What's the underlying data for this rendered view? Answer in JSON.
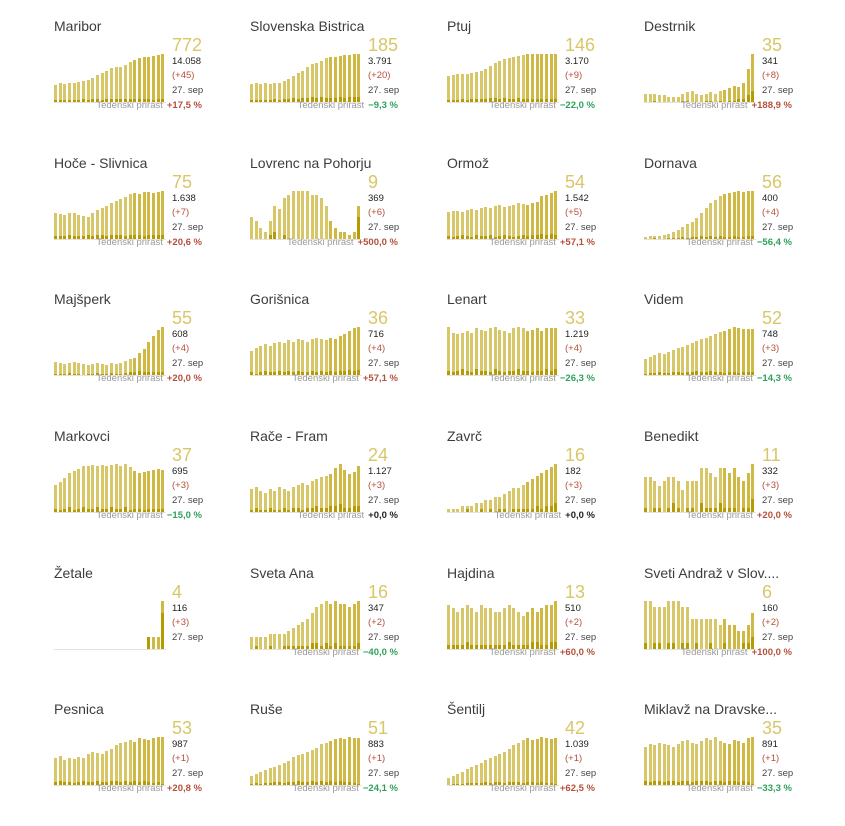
{
  "footer_label": "Tedenski prirast",
  "colors": {
    "bar": "#d8c769",
    "bar_recent": "#d0b845",
    "new_cases": "#b59a00",
    "positive": "#b4503c",
    "negative": "#2ea15a"
  },
  "chart_data": [
    {
      "type": "bar",
      "title": "Maribor",
      "active": "772",
      "total": "14.058",
      "new": "(+45)",
      "date": "27. sep",
      "growth": "+17,5 %",
      "sign": "pos",
      "values": [
        280,
        300,
        290,
        300,
        310,
        320,
        330,
        360,
        380,
        430,
        470,
        500,
        540,
        560,
        570,
        600,
        640,
        680,
        700,
        720,
        720,
        740,
        755,
        772
      ],
      "new_values": [
        30,
        32,
        28,
        35,
        30,
        40,
        42,
        38,
        45,
        50,
        40,
        45,
        55,
        50,
        48,
        52,
        46,
        50,
        44,
        48,
        52,
        40,
        45,
        45
      ]
    },
    {
      "type": "bar",
      "title": "Slovenska Bistrica",
      "active": "185",
      "total": "3.791",
      "new": "(+20)",
      "date": "27. sep",
      "growth": "−9,3 %",
      "sign": "neg",
      "values": [
        70,
        72,
        68,
        74,
        70,
        72,
        75,
        80,
        90,
        100,
        110,
        120,
        135,
        145,
        150,
        160,
        168,
        172,
        175,
        178,
        180,
        182,
        184,
        185
      ],
      "new_values": [
        8,
        7,
        8,
        9,
        7,
        10,
        9,
        11,
        12,
        14,
        13,
        15,
        16,
        18,
        14,
        19,
        17,
        16,
        15,
        18,
        17,
        19,
        18,
        20
      ]
    },
    {
      "type": "bar",
      "title": "Ptuj",
      "active": "146",
      "total": "3.170",
      "new": "(+9)",
      "date": "27. sep",
      "growth": "−22,0 %",
      "sign": "neg",
      "values": [
        80,
        82,
        84,
        85,
        86,
        88,
        90,
        95,
        100,
        110,
        120,
        125,
        130,
        135,
        138,
        140,
        144,
        146,
        145,
        146,
        146,
        145,
        146,
        146
      ],
      "new_values": [
        6,
        7,
        6,
        8,
        7,
        8,
        9,
        9,
        10,
        12,
        11,
        10,
        12,
        9,
        10,
        11,
        8,
        10,
        9,
        8,
        10,
        9,
        9,
        9
      ]
    },
    {
      "type": "bar",
      "title": "Destrnik",
      "active": "35",
      "total": "341",
      "new": "(+8)",
      "date": "27. sep",
      "growth": "+188,9 %",
      "sign": "pos",
      "values": [
        6,
        6,
        6,
        5,
        5,
        4,
        4,
        4,
        6,
        7,
        8,
        6,
        5,
        6,
        7,
        6,
        8,
        9,
        10,
        12,
        11,
        14,
        24,
        35
      ],
      "new_values": [
        0,
        0,
        1,
        0,
        0,
        0,
        0,
        0,
        1,
        1,
        0,
        0,
        0,
        1,
        1,
        0,
        1,
        0,
        1,
        1,
        2,
        2,
        5,
        8
      ]
    },
    {
      "type": "bar",
      "title": "Hoče - Slivnica",
      "active": "75",
      "total": "1.638",
      "new": "(+7)",
      "date": "27. sep",
      "growth": "+20,6 %",
      "sign": "pos",
      "values": [
        40,
        39,
        38,
        40,
        41,
        38,
        36,
        35,
        40,
        45,
        48,
        52,
        56,
        60,
        62,
        66,
        70,
        72,
        70,
        73,
        74,
        72,
        74,
        75
      ],
      "new_values": [
        4,
        5,
        4,
        6,
        5,
        4,
        5,
        6,
        5,
        6,
        7,
        5,
        6,
        7,
        6,
        5,
        7,
        6,
        6,
        5,
        7,
        6,
        6,
        7
      ]
    },
    {
      "type": "bar",
      "title": "Lovrenc na Pohorju",
      "active": "9",
      "total": "369",
      "new": "(+6)",
      "date": "27. sep",
      "growth": "+500,0 %",
      "sign": "pos",
      "values": [
        6,
        5,
        3,
        2,
        5,
        9,
        8,
        11,
        12,
        13,
        13,
        13,
        13,
        12,
        12,
        11,
        9,
        5,
        3,
        2,
        2,
        1,
        2,
        9
      ],
      "new_values": [
        0,
        0,
        0,
        0,
        1,
        2,
        0,
        1,
        0,
        0,
        0,
        0,
        0,
        0,
        0,
        0,
        0,
        0,
        0,
        0,
        0,
        0,
        0,
        6
      ]
    },
    {
      "type": "bar",
      "title": "Ormož",
      "active": "54",
      "total": "1.542",
      "new": "(+5)",
      "date": "27. sep",
      "growth": "+57,1 %",
      "sign": "pos",
      "values": [
        30,
        31,
        32,
        30,
        33,
        34,
        33,
        35,
        36,
        35,
        37,
        38,
        36,
        37,
        38,
        40,
        39,
        38,
        40,
        42,
        48,
        50,
        52,
        54
      ],
      "new_values": [
        3,
        2,
        3,
        4,
        3,
        2,
        4,
        3,
        3,
        4,
        2,
        3,
        4,
        3,
        2,
        3,
        4,
        3,
        4,
        5,
        6,
        5,
        6,
        5
      ]
    },
    {
      "type": "bar",
      "title": "Dornava",
      "active": "56",
      "total": "400",
      "new": "(+4)",
      "date": "27. sep",
      "growth": "−56,4 %",
      "sign": "neg",
      "values": [
        2,
        3,
        4,
        4,
        5,
        6,
        8,
        10,
        14,
        18,
        20,
        24,
        30,
        36,
        42,
        46,
        50,
        52,
        54,
        55,
        56,
        55,
        56,
        56
      ],
      "new_values": [
        0,
        0,
        1,
        0,
        0,
        1,
        1,
        1,
        2,
        1,
        2,
        2,
        3,
        2,
        3,
        2,
        3,
        2,
        2,
        3,
        2,
        2,
        3,
        4
      ]
    },
    {
      "type": "bar",
      "title": "Majšperk",
      "active": "55",
      "total": "608",
      "new": "(+4)",
      "date": "27. sep",
      "growth": "+20,0 %",
      "sign": "pos",
      "values": [
        15,
        14,
        13,
        14,
        15,
        14,
        13,
        12,
        13,
        14,
        13,
        12,
        14,
        13,
        14,
        16,
        18,
        20,
        25,
        30,
        38,
        45,
        52,
        55
      ],
      "new_values": [
        1,
        1,
        1,
        2,
        1,
        1,
        0,
        1,
        1,
        2,
        1,
        1,
        2,
        1,
        1,
        2,
        3,
        4,
        5,
        3,
        4,
        3,
        4,
        4
      ]
    },
    {
      "type": "bar",
      "title": "Gorišnica",
      "active": "36",
      "total": "716",
      "new": "(+4)",
      "date": "27. sep",
      "growth": "+57,1 %",
      "sign": "pos",
      "values": [
        18,
        20,
        22,
        23,
        22,
        24,
        25,
        24,
        26,
        25,
        27,
        26,
        25,
        27,
        28,
        27,
        26,
        28,
        27,
        29,
        31,
        33,
        35,
        36
      ],
      "new_values": [
        2,
        1,
        2,
        3,
        2,
        2,
        3,
        2,
        3,
        2,
        3,
        2,
        2,
        3,
        2,
        3,
        2,
        3,
        2,
        3,
        3,
        4,
        3,
        4
      ]
    },
    {
      "type": "bar",
      "title": "Lenart",
      "active": "33",
      "total": "1.219",
      "new": "(+4)",
      "date": "27. sep",
      "growth": "−26,3 %",
      "sign": "neg",
      "values": [
        34,
        30,
        29,
        30,
        31,
        30,
        33,
        32,
        31,
        33,
        34,
        32,
        31,
        30,
        33,
        34,
        33,
        31,
        32,
        33,
        31,
        33,
        33,
        33
      ],
      "new_values": [
        3,
        2,
        3,
        4,
        3,
        2,
        4,
        3,
        3,
        2,
        4,
        3,
        2,
        3,
        3,
        4,
        3,
        3,
        2,
        3,
        3,
        4,
        3,
        4
      ]
    },
    {
      "type": "bar",
      "title": "Videm",
      "active": "52",
      "total": "748",
      "new": "(+3)",
      "date": "27. sep",
      "growth": "−14,3 %",
      "sign": "neg",
      "values": [
        18,
        20,
        22,
        25,
        24,
        26,
        28,
        30,
        32,
        34,
        36,
        38,
        40,
        42,
        44,
        46,
        48,
        50,
        52,
        54,
        53,
        52,
        52,
        52
      ],
      "new_values": [
        1,
        2,
        2,
        3,
        2,
        2,
        3,
        3,
        2,
        3,
        3,
        4,
        3,
        3,
        4,
        3,
        3,
        2,
        3,
        3,
        2,
        3,
        3,
        3
      ]
    },
    {
      "type": "bar",
      "title": "Markovci",
      "active": "37",
      "total": "695",
      "new": "(+3)",
      "date": "27. sep",
      "growth": "−15,0 %",
      "sign": "neg",
      "values": [
        24,
        26,
        30,
        34,
        36,
        38,
        40,
        40,
        41,
        40,
        41,
        40,
        41,
        42,
        40,
        42,
        39,
        36,
        34,
        35,
        36,
        37,
        38,
        37
      ],
      "new_values": [
        3,
        2,
        3,
        4,
        2,
        3,
        4,
        3,
        3,
        4,
        3,
        3,
        4,
        3,
        3,
        4,
        2,
        3,
        3,
        2,
        3,
        3,
        3,
        3
      ]
    },
    {
      "type": "bar",
      "title": "Rače - Fram",
      "active": "24",
      "total": "1.127",
      "new": "(+3)",
      "date": "27. sep",
      "growth": "+0,0 %",
      "sign": "zero",
      "values": [
        12,
        13,
        11,
        10,
        12,
        11,
        13,
        12,
        11,
        13,
        14,
        15,
        14,
        16,
        17,
        18,
        19,
        20,
        23,
        25,
        22,
        20,
        21,
        24
      ],
      "new_values": [
        1,
        2,
        1,
        1,
        2,
        1,
        1,
        2,
        1,
        2,
        2,
        1,
        2,
        2,
        3,
        2,
        2,
        3,
        3,
        4,
        2,
        2,
        3,
        3
      ]
    },
    {
      "type": "bar",
      "title": "Zavrč",
      "active": "16",
      "total": "182",
      "new": "(+3)",
      "date": "27. sep",
      "growth": "+0,0 %",
      "sign": "zero",
      "values": [
        1,
        1,
        1,
        2,
        2,
        2,
        3,
        3,
        4,
        4,
        5,
        5,
        6,
        7,
        8,
        8,
        9,
        10,
        11,
        12,
        13,
        14,
        15,
        16
      ],
      "new_values": [
        0,
        0,
        0,
        0,
        1,
        0,
        0,
        1,
        0,
        1,
        0,
        1,
        1,
        0,
        1,
        1,
        1,
        1,
        1,
        2,
        1,
        2,
        2,
        3
      ]
    },
    {
      "type": "bar",
      "title": "Benedikt",
      "active": "11",
      "total": "332",
      "new": "(+3)",
      "date": "27. sep",
      "growth": "+20,0 %",
      "sign": "pos",
      "values": [
        8,
        8,
        7,
        6,
        7,
        8,
        8,
        7,
        5,
        7,
        7,
        7,
        10,
        10,
        9,
        8,
        10,
        10,
        9,
        10,
        8,
        7,
        9,
        11
      ],
      "new_values": [
        1,
        0,
        1,
        1,
        0,
        1,
        2,
        1,
        0,
        1,
        1,
        0,
        2,
        1,
        1,
        1,
        2,
        1,
        1,
        1,
        0,
        1,
        1,
        3
      ]
    },
    {
      "type": "bar",
      "title": "Žetale",
      "active": "4",
      "total": "116",
      "new": "(+3)",
      "date": "27. sep",
      "growth": "",
      "sign": "none",
      "values": [
        0,
        0,
        0,
        0,
        0,
        0,
        0,
        0,
        0,
        0,
        0,
        0,
        0,
        0,
        0,
        0,
        0,
        0,
        0,
        0,
        1,
        1,
        1,
        4
      ],
      "new_values": [
        0,
        0,
        0,
        0,
        0,
        0,
        0,
        0,
        0,
        0,
        0,
        0,
        0,
        0,
        0,
        0,
        0,
        0,
        0,
        0,
        1,
        0,
        0,
        3
      ]
    },
    {
      "type": "bar",
      "title": "Sveta Ana",
      "active": "16",
      "total": "347",
      "new": "(+2)",
      "date": "27. sep",
      "growth": "−40,0 %",
      "sign": "neg",
      "values": [
        4,
        4,
        4,
        4,
        5,
        5,
        5,
        5,
        6,
        7,
        8,
        9,
        10,
        12,
        14,
        15,
        16,
        15,
        16,
        15,
        15,
        14,
        15,
        16
      ],
      "new_values": [
        0,
        1,
        0,
        0,
        1,
        0,
        0,
        1,
        1,
        1,
        1,
        1,
        1,
        2,
        2,
        1,
        2,
        1,
        2,
        1,
        1,
        1,
        1,
        2
      ]
    },
    {
      "type": "bar",
      "title": "Hajdina",
      "active": "13",
      "total": "510",
      "new": "(+2)",
      "date": "27. sep",
      "growth": "+60,0 %",
      "sign": "pos",
      "values": [
        12,
        11,
        10,
        11,
        12,
        11,
        10,
        12,
        11,
        11,
        10,
        10,
        11,
        12,
        11,
        10,
        9,
        10,
        11,
        10,
        11,
        12,
        12,
        13
      ],
      "new_values": [
        1,
        1,
        1,
        1,
        2,
        1,
        1,
        1,
        1,
        1,
        1,
        1,
        1,
        2,
        1,
        1,
        1,
        1,
        2,
        2,
        1,
        1,
        2,
        2
      ]
    },
    {
      "type": "bar",
      "title": "Sveti Andraž v Slov....",
      "active": "6",
      "total": "160",
      "new": "(+2)",
      "date": "27. sep",
      "growth": "+100,0 %",
      "sign": "pos",
      "values": [
        8,
        8,
        7,
        7,
        7,
        8,
        8,
        8,
        7,
        7,
        5,
        5,
        5,
        5,
        5,
        5,
        4,
        5,
        4,
        4,
        3,
        3,
        4,
        6
      ],
      "new_values": [
        1,
        0,
        1,
        1,
        0,
        1,
        1,
        0,
        1,
        1,
        0,
        1,
        0,
        0,
        1,
        0,
        0,
        1,
        0,
        0,
        0,
        1,
        1,
        2
      ]
    },
    {
      "type": "bar",
      "title": "Pesnica",
      "active": "53",
      "total": "987",
      "new": "(+1)",
      "date": "27. sep",
      "growth": "+20,8 %",
      "sign": "pos",
      "values": [
        30,
        32,
        28,
        30,
        29,
        31,
        30,
        34,
        36,
        35,
        34,
        38,
        40,
        44,
        46,
        48,
        50,
        48,
        52,
        51,
        50,
        52,
        53,
        53
      ],
      "new_values": [
        3,
        4,
        3,
        3,
        2,
        3,
        4,
        3,
        3,
        4,
        3,
        3,
        4,
        4,
        3,
        4,
        3,
        4,
        3,
        4,
        3,
        2,
        3,
        1
      ]
    },
    {
      "type": "bar",
      "title": "Ruše",
      "active": "51",
      "total": "883",
      "new": "(+1)",
      "date": "27. sep",
      "growth": "−24,1 %",
      "sign": "neg",
      "values": [
        10,
        12,
        14,
        16,
        18,
        20,
        22,
        24,
        26,
        30,
        32,
        34,
        36,
        38,
        40,
        44,
        46,
        48,
        50,
        51,
        50,
        52,
        51,
        51
      ],
      "new_values": [
        1,
        2,
        1,
        2,
        2,
        3,
        3,
        2,
        3,
        3,
        4,
        3,
        3,
        4,
        3,
        4,
        3,
        4,
        3,
        4,
        3,
        3,
        2,
        1
      ]
    },
    {
      "type": "bar",
      "title": "Šentilj",
      "active": "42",
      "total": "1.039",
      "new": "(+1)",
      "date": "27. sep",
      "growth": "+62,5 %",
      "sign": "pos",
      "values": [
        6,
        8,
        10,
        12,
        14,
        16,
        18,
        20,
        22,
        24,
        26,
        28,
        30,
        32,
        36,
        38,
        40,
        42,
        40,
        41,
        43,
        42,
        41,
        42
      ],
      "new_values": [
        0,
        1,
        1,
        1,
        2,
        2,
        2,
        2,
        3,
        2,
        3,
        3,
        2,
        3,
        3,
        3,
        2,
        3,
        3,
        2,
        3,
        2,
        2,
        1
      ]
    },
    {
      "type": "bar",
      "title": "Miklavž na Dravske...",
      "active": "35",
      "total": "891",
      "new": "(+1)",
      "date": "27. sep",
      "growth": "−33,3 %",
      "sign": "neg",
      "values": [
        28,
        30,
        29,
        31,
        30,
        29,
        28,
        30,
        32,
        33,
        31,
        30,
        32,
        34,
        33,
        35,
        32,
        31,
        30,
        33,
        32,
        31,
        34,
        35
      ],
      "new_values": [
        3,
        2,
        3,
        3,
        2,
        3,
        3,
        2,
        3,
        3,
        2,
        3,
        3,
        3,
        2,
        3,
        3,
        2,
        3,
        3,
        2,
        3,
        2,
        1
      ]
    }
  ]
}
